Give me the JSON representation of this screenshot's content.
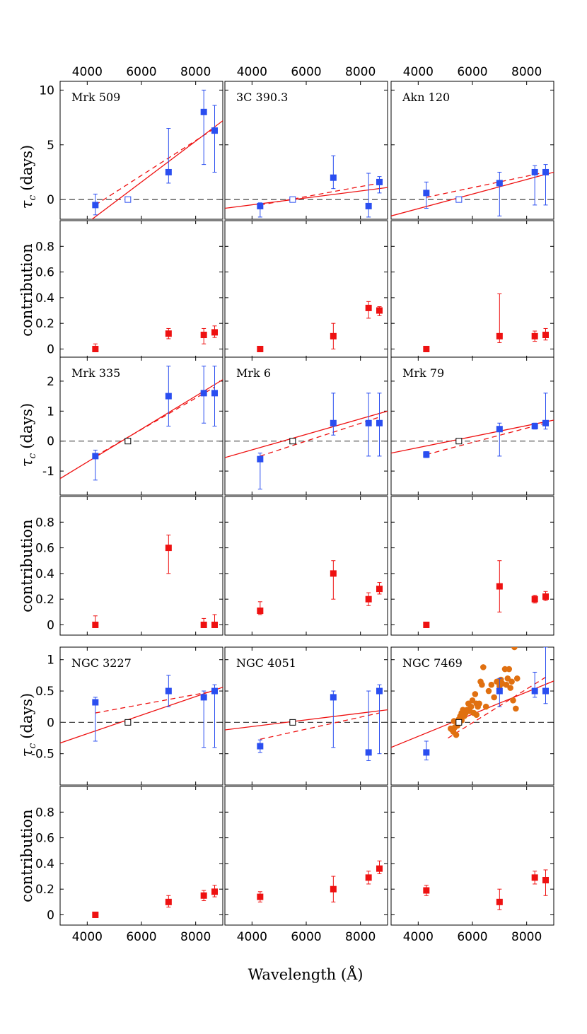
{
  "figure": {
    "xlabel": "Wavelength (Å)",
    "ylabel_top": "τ",
    "ylabel_top_sub": "c",
    "ylabel_top_unit": "(days)",
    "ylabel_bottom": "contribution",
    "x_ticks": [
      4000,
      6000,
      8000
    ],
    "x_range": [
      3000,
      9000
    ],
    "colors": {
      "tau": "#2a4ef0",
      "contrib": "#ee1111",
      "fit": "#ee1111",
      "zero": "#444444",
      "ref": "#000000",
      "extra": "#e07010"
    }
  },
  "chart_data": [
    {
      "type": "scatter",
      "title": "Mrk 509",
      "row": 0,
      "col": 0,
      "ylim": [
        -1.8,
        10.8
      ],
      "yticks": [
        0,
        5,
        10
      ],
      "wavelengths": [
        4300,
        7000,
        8300,
        8700
      ],
      "tau": [
        -0.5,
        2.5,
        8.0,
        6.3
      ],
      "tau_err_lo": [
        0.9,
        1.0,
        4.8,
        3.8
      ],
      "tau_err_hi": [
        1.0,
        4.0,
        2.0,
        2.3
      ],
      "ref_point": {
        "x": 5500,
        "y": 0,
        "filled": false
      },
      "fit_solid": [
        [
          3000,
          -4.0
        ],
        [
          9000,
          7.2
        ]
      ],
      "fit_dashed": [
        [
          4300,
          -0.5
        ],
        [
          8700,
          6.5
        ]
      ],
      "contrib": [
        0.0,
        0.12,
        0.11,
        0.13
      ],
      "contrib_err_lo": [
        0.02,
        0.04,
        0.07,
        0.04
      ],
      "contrib_err_hi": [
        0.04,
        0.04,
        0.05,
        0.05
      ]
    },
    {
      "type": "scatter",
      "title": "3C 390.3",
      "row": 0,
      "col": 1,
      "ylim": [
        -1.8,
        10.8
      ],
      "yticks": [
        0,
        5,
        10
      ],
      "wavelengths": [
        4300,
        7000,
        8300,
        8700
      ],
      "tau": [
        -0.6,
        2.0,
        -0.6,
        1.6
      ],
      "tau_err_lo": [
        1.0,
        1.0,
        1.0,
        1.0
      ],
      "tau_err_hi": [
        0.3,
        2.0,
        3.0,
        0.5
      ],
      "ref_point": {
        "x": 5500,
        "y": 0,
        "filled": false
      },
      "fit_solid": [
        [
          3000,
          -0.8
        ],
        [
          9000,
          1.1
        ]
      ],
      "fit_dashed": [
        [
          4300,
          -0.5
        ],
        [
          8700,
          1.5
        ]
      ],
      "contrib": [
        0.0,
        0.1,
        0.32,
        0.3
      ],
      "contrib_err_lo": [
        0.02,
        0.1,
        0.08,
        0.04
      ],
      "contrib_err_hi": [
        0.02,
        0.1,
        0.05,
        0.03
      ]
    },
    {
      "type": "scatter",
      "title": "Akn 120",
      "row": 0,
      "col": 2,
      "ylim": [
        -1.8,
        10.8
      ],
      "yticks": [
        0,
        5,
        10
      ],
      "wavelengths": [
        4300,
        7000,
        8300,
        8700
      ],
      "tau": [
        0.6,
        1.5,
        2.5,
        2.5
      ],
      "tau_err_lo": [
        1.4,
        3.0,
        3.0,
        3.0
      ],
      "tau_err_hi": [
        1.0,
        1.0,
        0.6,
        0.7
      ],
      "ref_point": {
        "x": 5500,
        "y": 0,
        "filled": false
      },
      "fit_solid": [
        [
          3000,
          -1.5
        ],
        [
          9000,
          2.5
        ]
      ],
      "fit_dashed": [
        [
          4300,
          0.2
        ],
        [
          8700,
          2.5
        ]
      ],
      "contrib": [
        0.0,
        0.1,
        0.1,
        0.11
      ],
      "contrib_err_lo": [
        0.02,
        0.05,
        0.04,
        0.04
      ],
      "contrib_err_hi": [
        0.02,
        0.33,
        0.04,
        0.05
      ]
    },
    {
      "type": "scatter",
      "title": "Mrk 335",
      "row": 1,
      "col": 0,
      "ylim": [
        -1.8,
        2.8
      ],
      "yticks": [
        -1,
        0,
        1,
        2
      ],
      "wavelengths": [
        4300,
        7000,
        8300,
        8700
      ],
      "tau": [
        -0.5,
        1.5,
        1.6,
        1.6
      ],
      "tau_err_lo": [
        0.8,
        1.0,
        1.0,
        1.1
      ],
      "tau_err_hi": [
        0.2,
        1.0,
        0.9,
        0.9
      ],
      "ref_point": {
        "x": 5500,
        "y": 0,
        "filled": false
      },
      "fit_solid": [
        [
          3000,
          -1.25
        ],
        [
          9000,
          2.05
        ]
      ],
      "fit_dashed": [
        [
          4300,
          -0.5
        ],
        [
          8700,
          1.8
        ]
      ],
      "contrib": [
        0.0,
        0.6,
        0.0,
        0.0
      ],
      "contrib_err_lo": [
        0.02,
        0.2,
        0.02,
        0.02
      ],
      "contrib_err_hi": [
        0.07,
        0.1,
        0.05,
        0.08
      ]
    },
    {
      "type": "scatter",
      "title": "Mrk 6",
      "row": 1,
      "col": 1,
      "ylim": [
        -1.8,
        2.8
      ],
      "yticks": [
        -1,
        0,
        1,
        2
      ],
      "wavelengths": [
        4300,
        7000,
        8300,
        8700
      ],
      "tau": [
        -0.6,
        0.6,
        0.6,
        0.6
      ],
      "tau_err_lo": [
        1.0,
        0.4,
        1.1,
        1.1
      ],
      "tau_err_hi": [
        0.2,
        1.0,
        1.0,
        1.0
      ],
      "ref_point": {
        "x": 5500,
        "y": 0,
        "filled": false
      },
      "fit_solid": [
        [
          3000,
          -0.55
        ],
        [
          9000,
          1.0
        ]
      ],
      "fit_dashed": [
        [
          4300,
          -0.5
        ],
        [
          8700,
          0.8
        ]
      ],
      "contrib": [
        0.11,
        0.4,
        0.2,
        0.28
      ],
      "contrib_err_lo": [
        0.03,
        0.2,
        0.05,
        0.04
      ],
      "contrib_err_hi": [
        0.07,
        0.1,
        0.05,
        0.05
      ]
    },
    {
      "type": "scatter",
      "title": "Mrk 79",
      "row": 1,
      "col": 2,
      "ylim": [
        -1.8,
        2.8
      ],
      "yticks": [
        -1,
        0,
        1,
        2
      ],
      "wavelengths": [
        4300,
        7000,
        8300,
        8700
      ],
      "tau": [
        -0.45,
        0.4,
        0.5,
        0.6
      ],
      "tau_err_lo": [
        0.1,
        0.9,
        0.1,
        0.2
      ],
      "tau_err_hi": [
        0.1,
        0.2,
        0.1,
        1.0
      ],
      "ref_point": {
        "x": 5500,
        "y": 0,
        "filled": false
      },
      "fit_solid": [
        [
          3000,
          -0.4
        ],
        [
          9000,
          0.7
        ]
      ],
      "fit_dashed": [
        [
          4300,
          -0.45
        ],
        [
          8700,
          0.6
        ]
      ],
      "contrib": [
        0.0,
        0.3,
        0.2,
        0.22
      ],
      "contrib_err_lo": [
        0.02,
        0.2,
        0.03,
        0.03
      ],
      "contrib_err_hi": [
        0.02,
        0.2,
        0.03,
        0.04
      ]
    },
    {
      "type": "scatter",
      "title": "NGC 3227",
      "row": 2,
      "col": 0,
      "ylim": [
        -1.0,
        1.2
      ],
      "yticks": [
        -0.5,
        0,
        0.5,
        1
      ],
      "wavelengths": [
        4300,
        7000,
        8300,
        8700
      ],
      "tau": [
        0.32,
        0.5,
        0.4,
        0.5
      ],
      "tau_err_lo": [
        0.62,
        0.25,
        0.8,
        0.9
      ],
      "tau_err_hi": [
        0.08,
        0.25,
        0.1,
        0.1
      ],
      "ref_point": {
        "x": 5500,
        "y": 0,
        "filled": false
      },
      "fit_solid": [
        [
          3000,
          -0.33
        ],
        [
          9000,
          0.56
        ]
      ],
      "fit_dashed": [
        [
          4300,
          0.15
        ],
        [
          8700,
          0.5
        ]
      ],
      "contrib": [
        0.0,
        0.1,
        0.15,
        0.18
      ],
      "contrib_err_lo": [
        0.02,
        0.04,
        0.04,
        0.04
      ],
      "contrib_err_hi": [
        0.02,
        0.05,
        0.04,
        0.05
      ]
    },
    {
      "type": "scatter",
      "title": "NGC 4051",
      "row": 2,
      "col": 1,
      "ylim": [
        -1.0,
        1.2
      ],
      "yticks": [
        -0.5,
        0,
        0.5,
        1
      ],
      "wavelengths": [
        4300,
        7000,
        8300,
        8700
      ],
      "tau": [
        -0.38,
        0.4,
        -0.48,
        0.5
      ],
      "tau_err_lo": [
        0.1,
        0.8,
        0.13,
        1.0
      ],
      "tau_err_hi": [
        0.1,
        0.1,
        0.98,
        0.1
      ],
      "ref_point": {
        "x": 5500,
        "y": 0,
        "filled": false
      },
      "fit_solid": [
        [
          3000,
          -0.12
        ],
        [
          9000,
          0.2
        ]
      ],
      "fit_dashed": [
        [
          4300,
          -0.27
        ],
        [
          8700,
          0.15
        ]
      ],
      "contrib": [
        0.14,
        0.2,
        0.29,
        0.36
      ],
      "contrib_err_lo": [
        0.04,
        0.1,
        0.05,
        0.04
      ],
      "contrib_err_hi": [
        0.04,
        0.1,
        0.05,
        0.06
      ]
    },
    {
      "type": "scatter",
      "title": "NGC 7469",
      "row": 2,
      "col": 2,
      "ylim": [
        -1.0,
        1.2
      ],
      "yticks": [
        -0.5,
        0,
        0.5,
        1
      ],
      "wavelengths": [
        4300,
        7000,
        8300,
        8700
      ],
      "tau": [
        -0.48,
        0.5,
        0.5,
        0.5
      ],
      "tau_err_lo": [
        0.12,
        0.25,
        0.1,
        0.2
      ],
      "tau_err_hi": [
        0.18,
        0.2,
        0.3,
        0.7
      ],
      "ref_point": {
        "x": 5500,
        "y": 0,
        "filled": false
      },
      "fit_solid": [
        [
          3000,
          -0.4
        ],
        [
          9000,
          0.66
        ]
      ],
      "fit_dashed": [
        [
          5100,
          -0.25
        ],
        [
          8700,
          0.72
        ]
      ],
      "extra_points": [
        [
          5200,
          -0.1
        ],
        [
          5300,
          -0.15
        ],
        [
          5350,
          -0.08
        ],
        [
          5400,
          -0.2
        ],
        [
          5450,
          -0.05
        ],
        [
          5500,
          0.05
        ],
        [
          5550,
          0.1
        ],
        [
          5600,
          0.15
        ],
        [
          5650,
          0.2
        ],
        [
          5700,
          0.1
        ],
        [
          5750,
          0.15
        ],
        [
          5800,
          0.2
        ],
        [
          5850,
          0.3
        ],
        [
          5900,
          0.18
        ],
        [
          5950,
          0.25
        ],
        [
          6000,
          0.35
        ],
        [
          6050,
          0.15
        ],
        [
          6100,
          0.45
        ],
        [
          6150,
          0.3
        ],
        [
          6200,
          0.25
        ],
        [
          6250,
          0.3
        ],
        [
          6300,
          0.65
        ],
        [
          6350,
          0.6
        ],
        [
          6400,
          0.88
        ],
        [
          6500,
          0.25
        ],
        [
          6600,
          0.5
        ],
        [
          6700,
          0.6
        ],
        [
          6800,
          0.4
        ],
        [
          6900,
          0.65
        ],
        [
          7000,
          0.58
        ],
        [
          7050,
          0.68
        ],
        [
          7100,
          0.62
        ],
        [
          7200,
          0.85
        ],
        [
          7250,
          0.6
        ],
        [
          7300,
          0.7
        ],
        [
          7350,
          0.85
        ],
        [
          7400,
          0.55
        ],
        [
          7450,
          0.65
        ],
        [
          7500,
          0.35
        ],
        [
          7550,
          1.2
        ],
        [
          7600,
          0.22
        ],
        [
          7650,
          0.7
        ],
        [
          5250,
          -0.12
        ],
        [
          5320,
          0.02
        ],
        [
          5600,
          0.03
        ],
        [
          6150,
          0.12
        ]
      ],
      "contrib": [
        0.19,
        0.1,
        0.29,
        0.27
      ],
      "contrib_err_lo": [
        0.04,
        0.06,
        0.05,
        0.12
      ],
      "contrib_err_hi": [
        0.04,
        0.1,
        0.05,
        0.08
      ]
    }
  ]
}
